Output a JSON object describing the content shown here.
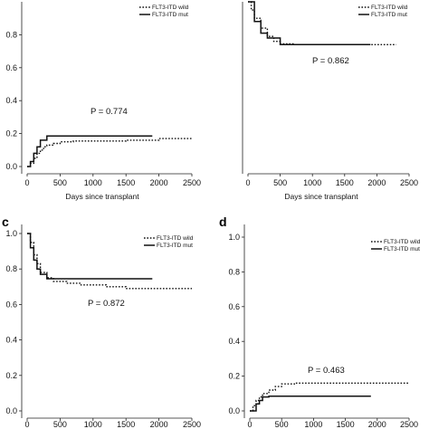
{
  "chart_data": [
    {
      "panel": "a",
      "panel_label": "",
      "type": "line",
      "xlabel": "Days since transplant",
      "xlim": [
        0,
        2500
      ],
      "ylim": [
        0,
        1.0
      ],
      "yticks": [
        "0.0",
        "0.2",
        "0.4",
        "0.6",
        "0.8"
      ],
      "xticks": [
        "0",
        "500",
        "1000",
        "1500",
        "2000",
        "2500"
      ],
      "annotation": "P = 0.774",
      "legend": [
        "FLT3-ITD wild",
        "FLT3-ITD mut"
      ],
      "series": [
        {
          "name": "FLT3-ITD wild",
          "style": "dotted",
          "x": [
            0,
            50,
            100,
            150,
            200,
            250,
            300,
            400,
            500,
            700,
            1000,
            1500,
            2000,
            2500
          ],
          "y": [
            0.0,
            0.02,
            0.05,
            0.08,
            0.1,
            0.12,
            0.13,
            0.14,
            0.15,
            0.155,
            0.155,
            0.16,
            0.17,
            0.17
          ]
        },
        {
          "name": "FLT3-ITD mut",
          "style": "solid",
          "x": [
            0,
            50,
            100,
            150,
            200,
            300,
            500,
            1000,
            1500,
            1900
          ],
          "y": [
            0.0,
            0.03,
            0.08,
            0.12,
            0.16,
            0.185,
            0.185,
            0.185,
            0.185,
            0.185
          ]
        }
      ]
    },
    {
      "panel": "b",
      "panel_label": "",
      "type": "line",
      "xlabel": "Days since transplant",
      "xlim": [
        0,
        2500
      ],
      "ylim": [
        0,
        1.0
      ],
      "yticks": [],
      "xticks": [
        "0",
        "500",
        "1000",
        "1500",
        "2000",
        "2500"
      ],
      "annotation": "P = 0.862",
      "legend": [
        "FLT3-ITD wild",
        "FLT3-ITD mut"
      ],
      "series": [
        {
          "name": "FLT3-ITD wild",
          "style": "dotted",
          "x": [
            0,
            50,
            100,
            200,
            300,
            400,
            500,
            700,
            1000,
            1500,
            2000,
            2300
          ],
          "y": [
            1.0,
            0.95,
            0.9,
            0.84,
            0.79,
            0.76,
            0.745,
            0.74,
            0.74,
            0.74,
            0.74,
            0.74
          ]
        },
        {
          "name": "FLT3-ITD mut",
          "style": "solid",
          "x": [
            0,
            100,
            200,
            300,
            500,
            1000,
            1500,
            1900
          ],
          "y": [
            1.0,
            0.88,
            0.81,
            0.78,
            0.74,
            0.74,
            0.74,
            0.74
          ]
        }
      ]
    },
    {
      "panel": "c",
      "panel_label": "c",
      "type": "line",
      "xlabel": "",
      "xlim": [
        0,
        2500
      ],
      "ylim": [
        0,
        1.0
      ],
      "yticks": [
        "0.0",
        "0.2",
        "0.4",
        "0.6",
        "0.8",
        "1.0"
      ],
      "xticks": [
        "0",
        "500",
        "1000",
        "1500",
        "2000",
        "2500"
      ],
      "annotation": "P = 0.872",
      "legend": [
        "FLT3-ITD wild",
        "FLT3-ITD mut"
      ],
      "series": [
        {
          "name": "FLT3-ITD wild",
          "style": "dotted",
          "x": [
            0,
            50,
            100,
            150,
            200,
            300,
            400,
            600,
            800,
            1000,
            1200,
            1500,
            2000,
            2500
          ],
          "y": [
            1.0,
            0.95,
            0.88,
            0.83,
            0.78,
            0.75,
            0.73,
            0.72,
            0.71,
            0.71,
            0.7,
            0.69,
            0.69,
            0.69
          ]
        },
        {
          "name": "FLT3-ITD mut",
          "style": "solid",
          "x": [
            0,
            50,
            100,
            150,
            200,
            300,
            500,
            1000,
            1500,
            1900
          ],
          "y": [
            1.0,
            0.92,
            0.85,
            0.8,
            0.77,
            0.745,
            0.745,
            0.745,
            0.745,
            0.745
          ]
        }
      ]
    },
    {
      "panel": "d",
      "panel_label": "d",
      "type": "line",
      "xlabel": "",
      "xlim": [
        0,
        2500
      ],
      "ylim": [
        0,
        1.0
      ],
      "yticks": [
        "0.0",
        "0.2",
        "0.4",
        "0.6",
        "0.8",
        "1.0"
      ],
      "xticks": [
        "0",
        "500",
        "1000",
        "1500",
        "2000",
        "2500"
      ],
      "annotation": "P = 0.463",
      "legend": [
        "FLT3-ITD wild",
        "FLT3-ITD mut"
      ],
      "series": [
        {
          "name": "FLT3-ITD wild",
          "style": "dotted",
          "x": [
            0,
            50,
            100,
            150,
            200,
            300,
            400,
            500,
            700,
            1000,
            1500,
            2000,
            2500
          ],
          "y": [
            0.0,
            0.03,
            0.06,
            0.08,
            0.1,
            0.12,
            0.14,
            0.155,
            0.16,
            0.16,
            0.16,
            0.16,
            0.16
          ]
        },
        {
          "name": "FLT3-ITD mut",
          "style": "solid",
          "x": [
            0,
            100,
            150,
            200,
            300,
            500,
            1000,
            1500,
            1900
          ],
          "y": [
            0.0,
            0.04,
            0.06,
            0.08,
            0.085,
            0.085,
            0.085,
            0.085,
            0.085
          ]
        }
      ]
    }
  ],
  "colors": {
    "line": "#111111",
    "axis": "#222222",
    "background": "#ffffff"
  }
}
